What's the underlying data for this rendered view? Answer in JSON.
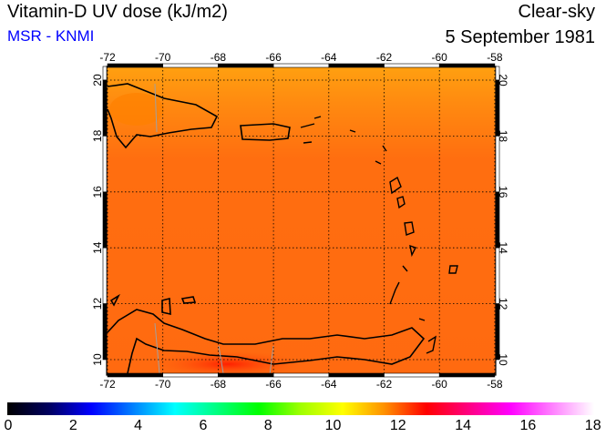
{
  "header": {
    "title": "Vitamin-D UV dose (kJ/m2)",
    "source": "MSR - KNMI",
    "sky": "Clear-sky",
    "date": "5 September 1981"
  },
  "map": {
    "lon_ticks": [
      "-72",
      "-70",
      "-68",
      "-66",
      "-64",
      "-62",
      "-60",
      "-58"
    ],
    "lat_ticks": [
      "20",
      "18",
      "16",
      "14",
      "12",
      "10"
    ],
    "colors": {
      "ocean": "#ff6a10",
      "north": "#ff9a10",
      "land_outline": "#000000",
      "border": "#a0a0a0"
    }
  },
  "colorbar": {
    "labels": [
      "0",
      "2",
      "4",
      "6",
      "8",
      "10",
      "12",
      "14",
      "16",
      "18"
    ],
    "range": [
      0,
      18
    ],
    "stops": [
      "#000000",
      "#000060",
      "#0000ff",
      "#0080ff",
      "#00ffff",
      "#00ff80",
      "#00ff00",
      "#a0ff00",
      "#ffff00",
      "#ff9000",
      "#ff0000",
      "#ff0080",
      "#ff00ff",
      "#ff80ff",
      "#ffffff"
    ]
  }
}
